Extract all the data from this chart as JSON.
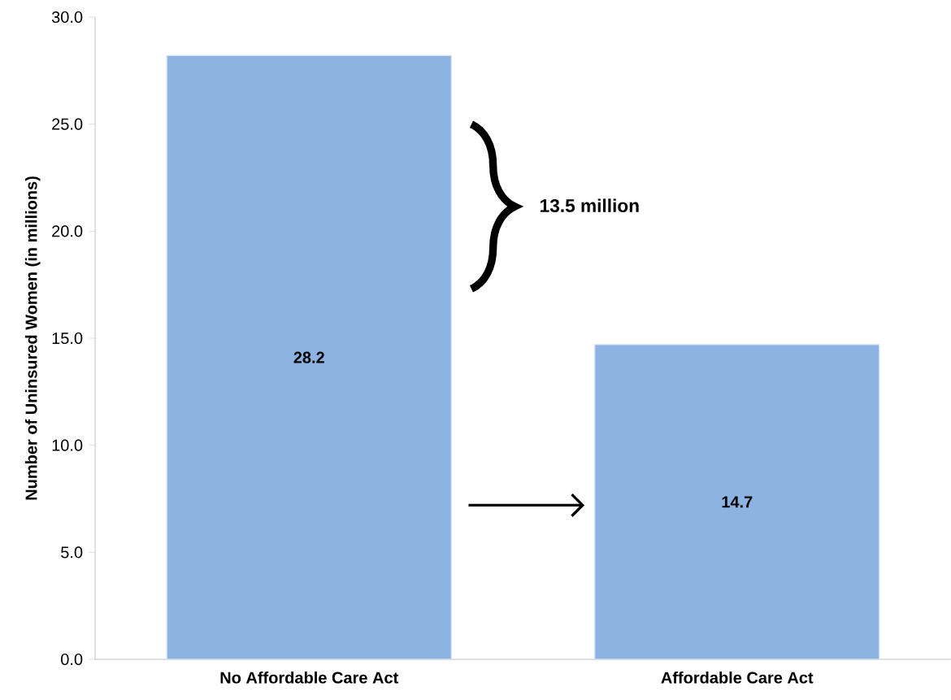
{
  "chart_data": {
    "type": "bar",
    "categories": [
      "No Affordable Care Act",
      "Affordable Care Act"
    ],
    "values": [
      28.2,
      14.7
    ],
    "color": "#8db3e2",
    "ylabel": "Number of Uninsured Women (in millions)",
    "ylim": [
      0,
      30
    ],
    "yticks": [
      {
        "value": 0,
        "label": "0.0"
      },
      {
        "value": 5,
        "label": "5.0"
      },
      {
        "value": 10,
        "label": "10.0"
      },
      {
        "value": 15,
        "label": "15.0"
      },
      {
        "value": 20,
        "label": "20.0"
      },
      {
        "value": 25,
        "label": "25.0"
      },
      {
        "value": 30,
        "label": "30.0"
      }
    ],
    "data_labels": true,
    "annotations": [
      "13.5 million"
    ]
  }
}
